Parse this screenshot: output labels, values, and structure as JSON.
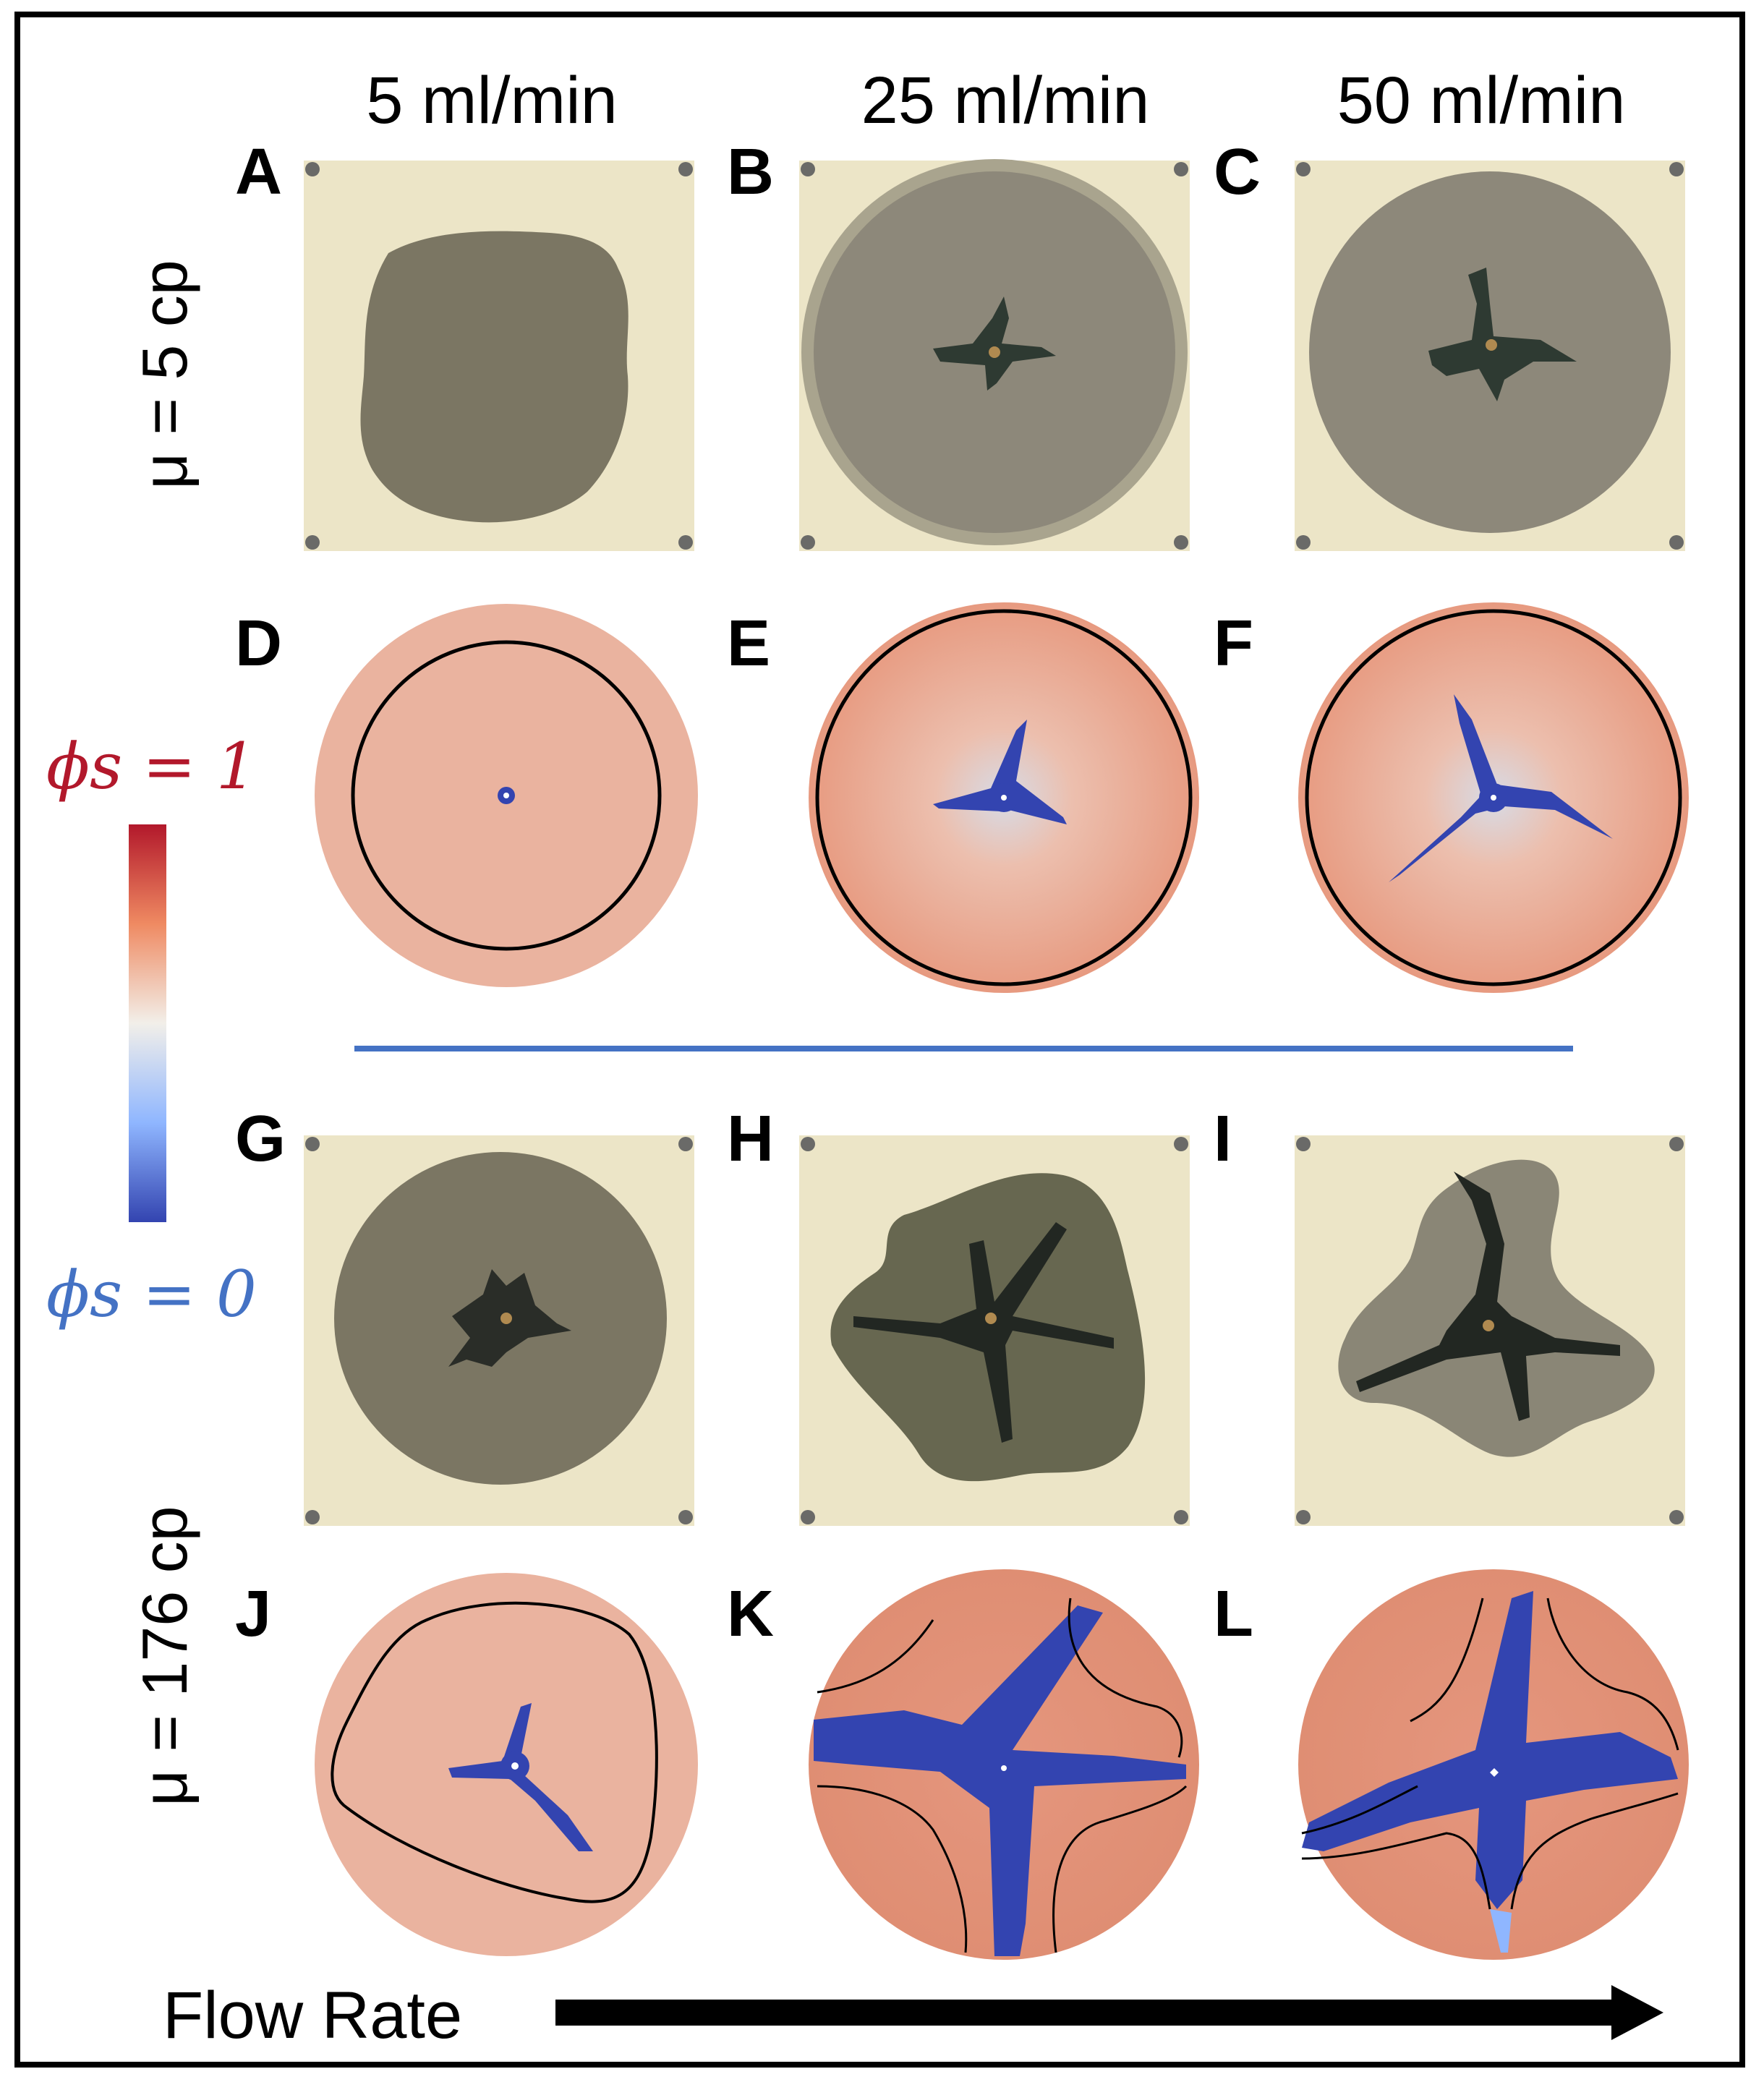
{
  "columns": [
    "5 ml/min",
    "25 ml/min",
    "50 ml/min"
  ],
  "rows": {
    "top_viscosity": "μ = 5 cp",
    "bottom_viscosity": "μ = 176 cp"
  },
  "panel_letters": [
    "A",
    "B",
    "C",
    "D",
    "E",
    "F",
    "G",
    "H",
    "I",
    "J",
    "K",
    "L"
  ],
  "colorbar": {
    "top_label": "ϕs = 1",
    "bottom_label": "ϕs = 0",
    "top_color": "#b2182b",
    "bottom_color": "#3b4cc0"
  },
  "footer": {
    "axis_label": "Flow Rate"
  },
  "colors": {
    "experiment_background": "#ece5c7",
    "fluid_dark": "#7b7663",
    "solid_red": "#e79a80",
    "channel_blue": "#3344b0",
    "divider_blue": "#4472c4"
  }
}
